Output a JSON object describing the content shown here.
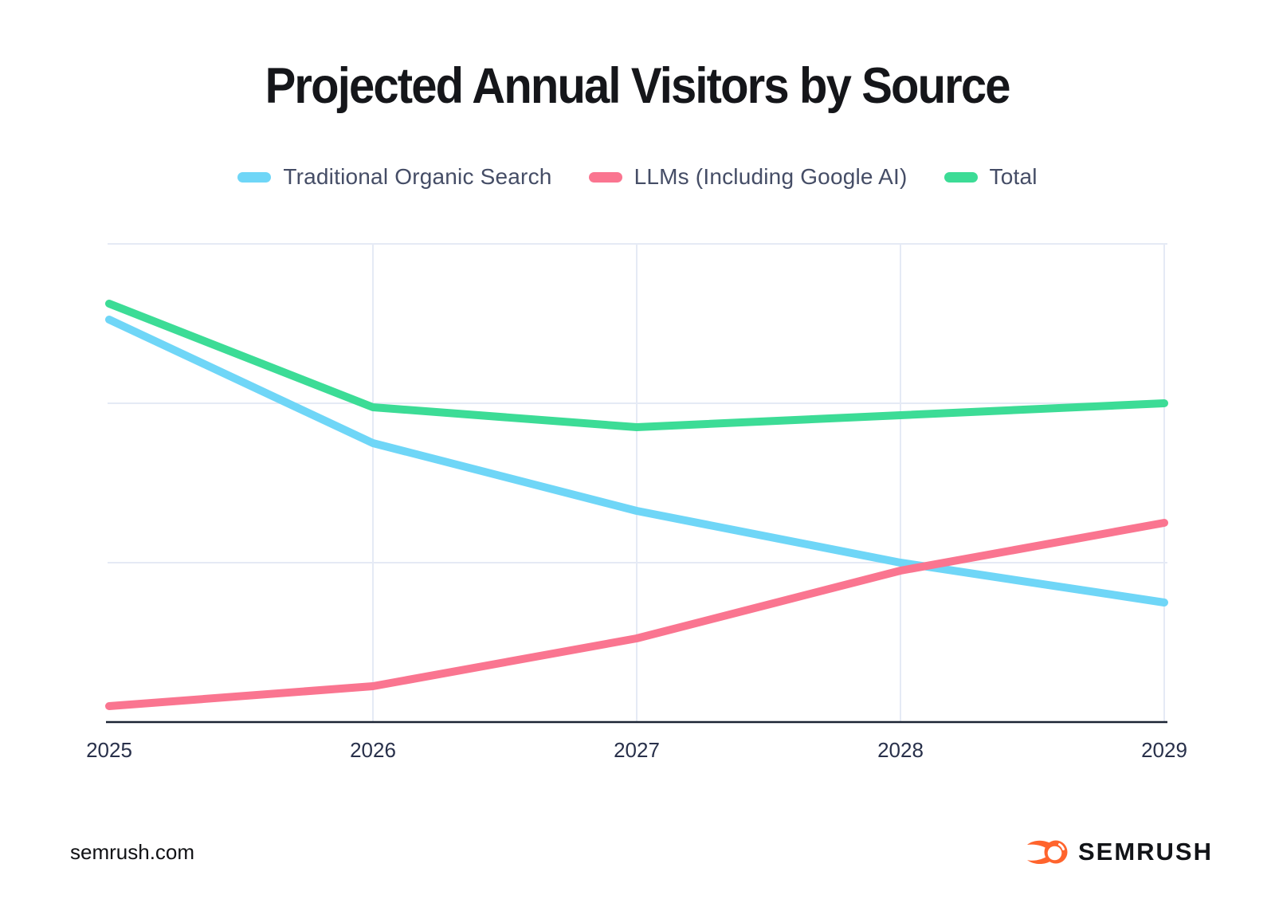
{
  "title": "Projected Annual Visitors by Source",
  "legend": [
    {
      "label": "Traditional Organic Search",
      "color": "#6fd6f7"
    },
    {
      "label": "LLMs (Including Google AI)",
      "color": "#fa7590"
    },
    {
      "label": "Total",
      "color": "#3cdc96"
    }
  ],
  "chart_data": {
    "type": "line",
    "x": [
      "2025",
      "2026",
      "2027",
      "2028",
      "2029"
    ],
    "series": [
      {
        "name": "Traditional Organic Search",
        "color": "#6fd6f7",
        "values": [
          505,
          350,
          265,
          200,
          150
        ]
      },
      {
        "name": "LLMs (Including Google AI)",
        "color": "#fa7590",
        "values": [
          20,
          45,
          105,
          190,
          250
        ]
      },
      {
        "name": "Total",
        "color": "#3cdc96",
        "values": [
          525,
          395,
          370,
          385,
          400
        ]
      }
    ],
    "title": "Projected Annual Visitors by Source",
    "xlabel": "",
    "ylabel": "",
    "ylim": [
      0,
      600
    ],
    "y_gridline_step": 200,
    "y_tick_labels_visible": false,
    "grid": true,
    "legend_position": "top",
    "values_unit": "relative (y axis unlabeled, estimated from gridlines)"
  },
  "footer": {
    "site": "semrush.com",
    "brand": "SEMRUSH"
  },
  "colors": {
    "background": "#ffffff",
    "title_text": "#15161a",
    "legend_text": "#454d66",
    "tick_text": "#28304a",
    "gridline": "#e5eaf5",
    "axis_line": "#1b2434",
    "brand_orange": "#ff642d"
  }
}
